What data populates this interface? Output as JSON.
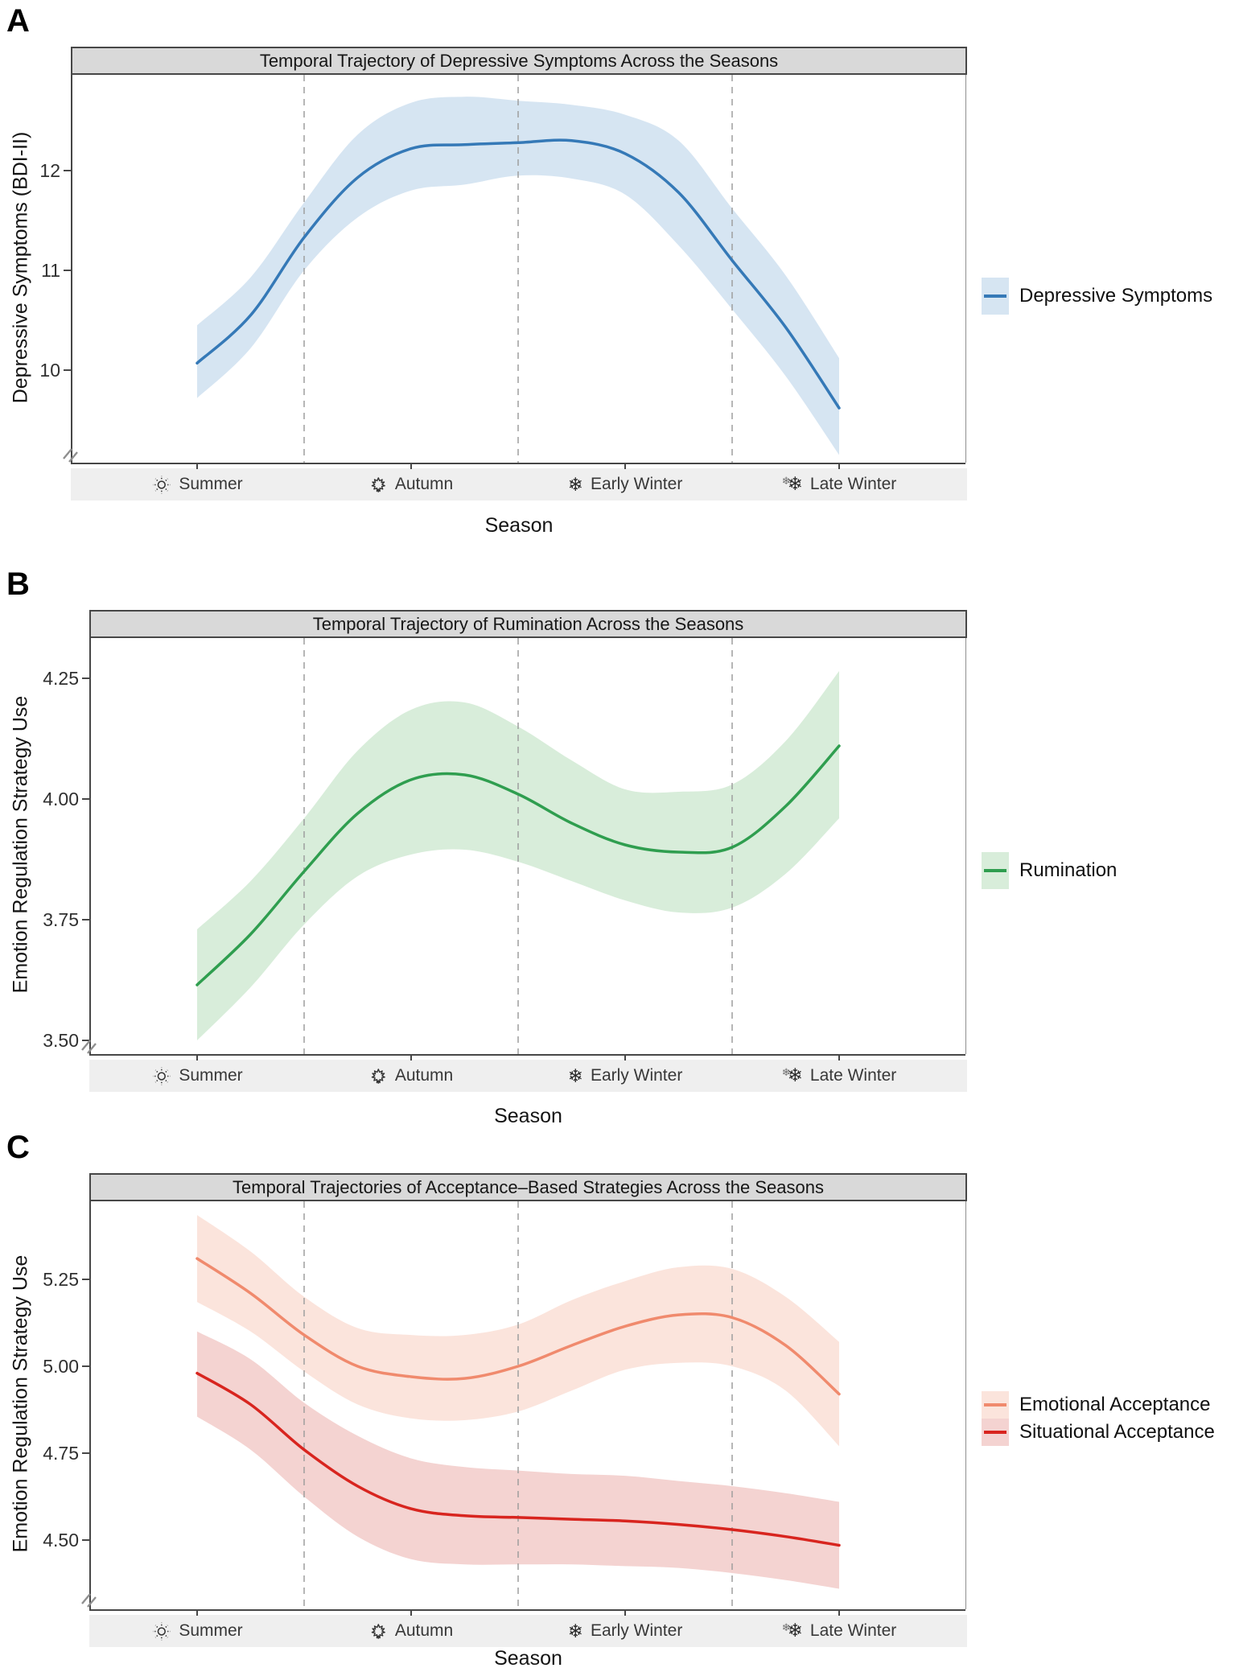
{
  "figure": {
    "panels": [
      {
        "letter": "A"
      },
      {
        "letter": "B"
      },
      {
        "letter": "C"
      }
    ]
  },
  "colors": {
    "title_strip_bg": "#d9d9d9",
    "season_strip_bg": "#efefef",
    "axis_line": "#474747",
    "panel_right_border": "#8f8f8f",
    "gridline_dashed": "#9e9e9e",
    "blue_line": "#3579b7",
    "blue_band": "#d6e5f2",
    "green_line": "#2f9e4f",
    "green_band": "#d8edda",
    "salmon_line": "#f08a6d",
    "salmon_band": "#fbe4dc",
    "red_line": "#d8251f",
    "red_band": "#f4d3d1"
  },
  "chart_data": [
    {
      "type": "line",
      "title": "Temporal Trajectory of Depressive Symptoms Across the Seasons",
      "xlabel": "Season",
      "ylabel": "Depressive Symptoms (BDI-II)",
      "legend_position": "right",
      "axis_break": true,
      "x_categories": [
        {
          "label": "Summer",
          "icon": "sun-icon",
          "x": 1
        },
        {
          "label": "Autumn",
          "icon": "maple-leaf-icon",
          "x": 2
        },
        {
          "label": "Early Winter",
          "icon": "snowflake-icon",
          "x": 3
        },
        {
          "label": "Late Winter",
          "icon": "double-snowflake-icon",
          "x": 4
        }
      ],
      "vlines_x": [
        1.5,
        2.5,
        3.5
      ],
      "y_ticks": [
        {
          "value": 12,
          "label": "12"
        },
        {
          "value": 11,
          "label": "11"
        },
        {
          "value": 10,
          "label": "10"
        }
      ],
      "ylim_display": [
        9.1,
        13.0
      ],
      "x": [
        1,
        1.25,
        1.5,
        1.75,
        2,
        2.25,
        2.5,
        2.75,
        3,
        3.25,
        3.5,
        3.75,
        4
      ],
      "series": [
        {
          "name": "Depressive Symptoms",
          "color": "#3579b7",
          "band_color": "#d6e5f2",
          "y": [
            10.07,
            10.55,
            11.33,
            11.93,
            12.22,
            12.26,
            12.28,
            12.3,
            12.17,
            11.78,
            11.1,
            10.43,
            9.62
          ],
          "band_lower": [
            9.72,
            10.22,
            11.0,
            11.53,
            11.8,
            11.86,
            11.95,
            11.92,
            11.76,
            11.25,
            10.61,
            9.94,
            9.15
          ],
          "band_upper": [
            10.45,
            10.93,
            11.68,
            12.36,
            12.68,
            12.74,
            12.7,
            12.66,
            12.56,
            12.3,
            11.62,
            10.95,
            10.12
          ]
        }
      ]
    },
    {
      "type": "line",
      "title": "Temporal Trajectory of Rumination Across the Seasons",
      "xlabel": "Season",
      "ylabel": "Emotion Regulation Strategy Use",
      "legend_position": "right",
      "axis_break": true,
      "x_categories": [
        {
          "label": "Summer",
          "icon": "sun-icon",
          "x": 1
        },
        {
          "label": "Autumn",
          "icon": "maple-leaf-icon",
          "x": 2
        },
        {
          "label": "Early Winter",
          "icon": "snowflake-icon",
          "x": 3
        },
        {
          "label": "Late Winter",
          "icon": "double-snowflake-icon",
          "x": 4
        }
      ],
      "vlines_x": [
        1.5,
        2.5,
        3.5
      ],
      "y_ticks": [
        {
          "value": 4.25,
          "label": "4.25"
        },
        {
          "value": 4.0,
          "label": "4.00"
        },
        {
          "value": 3.75,
          "label": "3.75"
        },
        {
          "value": 3.5,
          "label": "3.50"
        }
      ],
      "ylim_display": [
        3.47,
        4.33
      ],
      "x": [
        1,
        1.25,
        1.5,
        1.75,
        2,
        2.25,
        2.5,
        2.75,
        3,
        3.25,
        3.5,
        3.75,
        4
      ],
      "series": [
        {
          "name": "Rumination",
          "color": "#2f9e4f",
          "band_color": "#d8edda",
          "y": [
            3.615,
            3.72,
            3.85,
            3.97,
            4.04,
            4.05,
            4.01,
            3.95,
            3.905,
            3.89,
            3.9,
            3.985,
            4.11
          ],
          "band_lower": [
            3.5,
            3.61,
            3.74,
            3.84,
            3.885,
            3.895,
            3.87,
            3.83,
            3.79,
            3.765,
            3.775,
            3.845,
            3.96
          ],
          "band_upper": [
            3.73,
            3.83,
            3.96,
            4.1,
            4.185,
            4.2,
            4.15,
            4.08,
            4.02,
            4.015,
            4.03,
            4.12,
            4.265
          ]
        }
      ]
    },
    {
      "type": "line",
      "title": "Temporal Trajectories of Acceptance–Based Strategies Across the Seasons",
      "xlabel": "Season",
      "ylabel": "Emotion Regulation Strategy Use",
      "legend_position": "right",
      "axis_break": true,
      "x_categories": [
        {
          "label": "Summer",
          "icon": "sun-icon",
          "x": 1
        },
        {
          "label": "Autumn",
          "icon": "maple-leaf-icon",
          "x": 2
        },
        {
          "label": "Early Winter",
          "icon": "snowflake-icon",
          "x": 3
        },
        {
          "label": "Late Winter",
          "icon": "double-snowflake-icon",
          "x": 4
        }
      ],
      "vlines_x": [
        1.5,
        2.5,
        3.5
      ],
      "y_ticks": [
        {
          "value": 5.25,
          "label": "5.25"
        },
        {
          "value": 5.0,
          "label": "5.00"
        },
        {
          "value": 4.75,
          "label": "4.75"
        },
        {
          "value": 4.5,
          "label": "4.50"
        }
      ],
      "ylim_display": [
        4.33,
        5.48
      ],
      "x": [
        1,
        1.25,
        1.5,
        1.75,
        2,
        2.25,
        2.5,
        2.75,
        3,
        3.25,
        3.5,
        3.75,
        4
      ],
      "series": [
        {
          "name": "Emotional Acceptance",
          "color": "#f08a6d",
          "band_color": "#fbe4dc",
          "y": [
            5.31,
            5.21,
            5.09,
            5.0,
            4.97,
            4.965,
            5.0,
            5.06,
            5.115,
            5.148,
            5.14,
            5.06,
            4.92
          ],
          "band_lower": [
            5.185,
            5.1,
            4.985,
            4.89,
            4.85,
            4.845,
            4.87,
            4.93,
            4.99,
            5.01,
            5.0,
            4.93,
            4.77
          ],
          "band_upper": [
            5.435,
            5.33,
            5.2,
            5.11,
            5.09,
            5.09,
            5.12,
            5.19,
            5.245,
            5.285,
            5.28,
            5.2,
            5.07
          ]
        },
        {
          "name": "Situational Acceptance",
          "color": "#d8251f",
          "band_color": "#f4d3d1",
          "y": [
            4.98,
            4.89,
            4.76,
            4.655,
            4.59,
            4.57,
            4.565,
            4.56,
            4.555,
            4.545,
            4.53,
            4.51,
            4.485
          ],
          "band_lower": [
            4.855,
            4.76,
            4.625,
            4.51,
            4.445,
            4.43,
            4.43,
            4.43,
            4.425,
            4.42,
            4.405,
            4.385,
            4.36
          ],
          "band_upper": [
            5.1,
            5.02,
            4.895,
            4.8,
            4.735,
            4.71,
            4.7,
            4.69,
            4.685,
            4.67,
            4.655,
            4.635,
            4.61
          ]
        }
      ]
    }
  ]
}
